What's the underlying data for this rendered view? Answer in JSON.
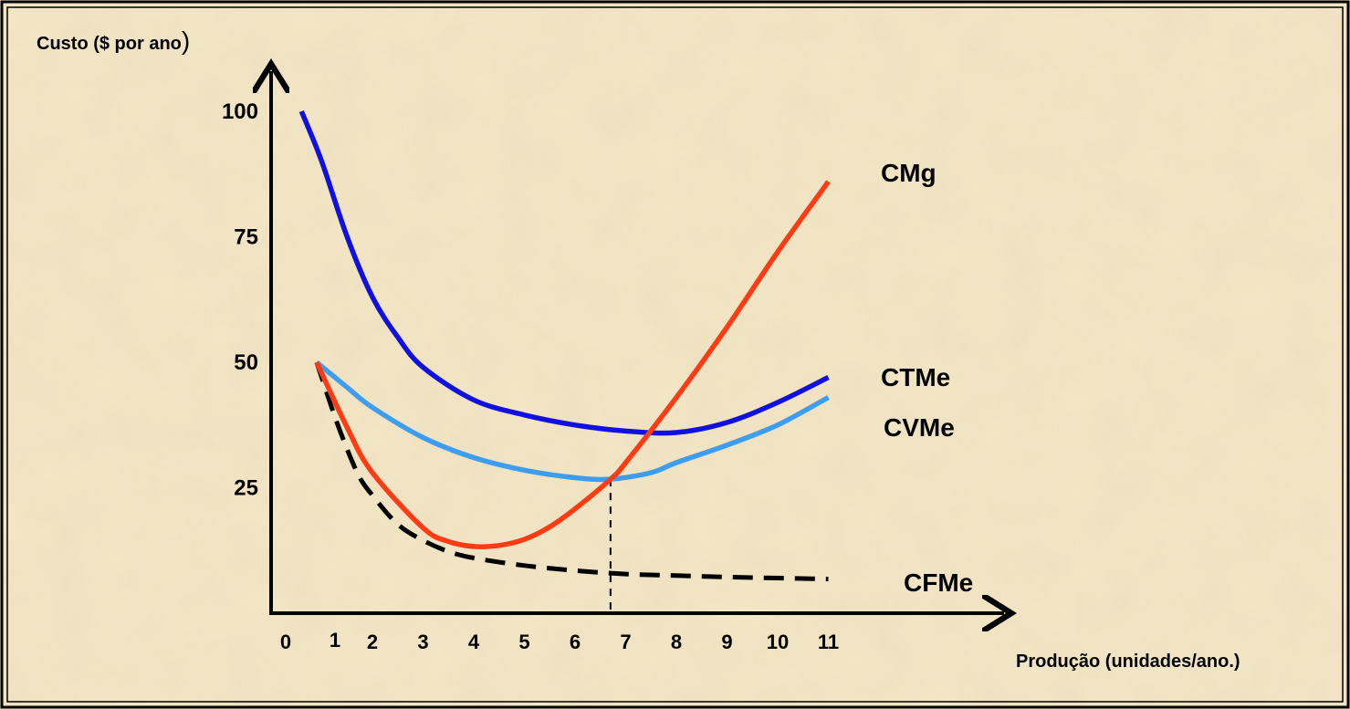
{
  "chart_data": {
    "type": "line",
    "ylabel": "Custo ($ por ano",
    "ylabel_paren": ")",
    "xlabel": "Produção (unidades/ano.)",
    "x_ticks": [
      "0",
      "1",
      "2",
      "3",
      "4",
      "5",
      "6",
      "7",
      "8",
      "9",
      "10",
      "11"
    ],
    "y_ticks": [
      {
        "value": 100,
        "label": "100"
      },
      {
        "value": 75,
        "label": "75"
      },
      {
        "value": 50,
        "label": "50"
      },
      {
        "value": 25,
        "label": "25"
      }
    ],
    "xlim": [
      0,
      11.6
    ],
    "ylim": [
      0,
      102
    ],
    "grid": false,
    "colors": {
      "background": "#f3e6c6",
      "border": "#000000",
      "axis": "#000000",
      "CMg": "#ff3b14",
      "CTMe": "#1010e0",
      "CVMe": "#3d9df0",
      "CFMe": "#000000"
    },
    "series": [
      {
        "name": "CTMe",
        "style": "solid",
        "points": [
          [
            0.6,
            100
          ],
          [
            1,
            90
          ],
          [
            1.5,
            75
          ],
          [
            2,
            63
          ],
          [
            2.5,
            55
          ],
          [
            3,
            49
          ],
          [
            4,
            42.5
          ],
          [
            5,
            39.5
          ],
          [
            6,
            37.5
          ],
          [
            7,
            36.3
          ],
          [
            8,
            36
          ],
          [
            9,
            38
          ],
          [
            10,
            42
          ],
          [
            11,
            47
          ]
        ]
      },
      {
        "name": "CVMe",
        "style": "solid",
        "points": [
          [
            0.9,
            50
          ],
          [
            1.5,
            45
          ],
          [
            2,
            41
          ],
          [
            3,
            35
          ],
          [
            4,
            31
          ],
          [
            5,
            28.5
          ],
          [
            6,
            27
          ],
          [
            6.7,
            26.7
          ],
          [
            7.5,
            28
          ],
          [
            8,
            30
          ],
          [
            9,
            33.5
          ],
          [
            10,
            37.5
          ],
          [
            11,
            43
          ]
        ]
      },
      {
        "name": "CMg",
        "style": "solid",
        "points": [
          [
            0.9,
            50
          ],
          [
            1.5,
            37
          ],
          [
            2,
            28
          ],
          [
            3,
            17
          ],
          [
            3.5,
            14.3
          ],
          [
            4,
            13.3
          ],
          [
            4.5,
            13.5
          ],
          [
            5,
            14.7
          ],
          [
            5.5,
            17.2
          ],
          [
            6,
            20.8
          ],
          [
            6.7,
            26.7
          ],
          [
            7,
            30
          ],
          [
            8,
            43
          ],
          [
            9,
            57
          ],
          [
            10,
            72
          ],
          [
            11,
            86
          ]
        ]
      },
      {
        "name": "CFMe",
        "style": "dashed",
        "points": [
          [
            0.9,
            50
          ],
          [
            1.3,
            38
          ],
          [
            1.7,
            28
          ],
          [
            2,
            23.5
          ],
          [
            2.5,
            17.7
          ],
          [
            3,
            14.5
          ],
          [
            3.5,
            12.3
          ],
          [
            4,
            11
          ],
          [
            5,
            9.5
          ],
          [
            6,
            8.5
          ],
          [
            7,
            7.8
          ],
          [
            8,
            7.5
          ],
          [
            9,
            7.2
          ],
          [
            10,
            7
          ],
          [
            11,
            6.8
          ]
        ]
      }
    ],
    "reference_line": {
      "x": 6.7,
      "y": 26.7,
      "style": "dashed"
    }
  }
}
